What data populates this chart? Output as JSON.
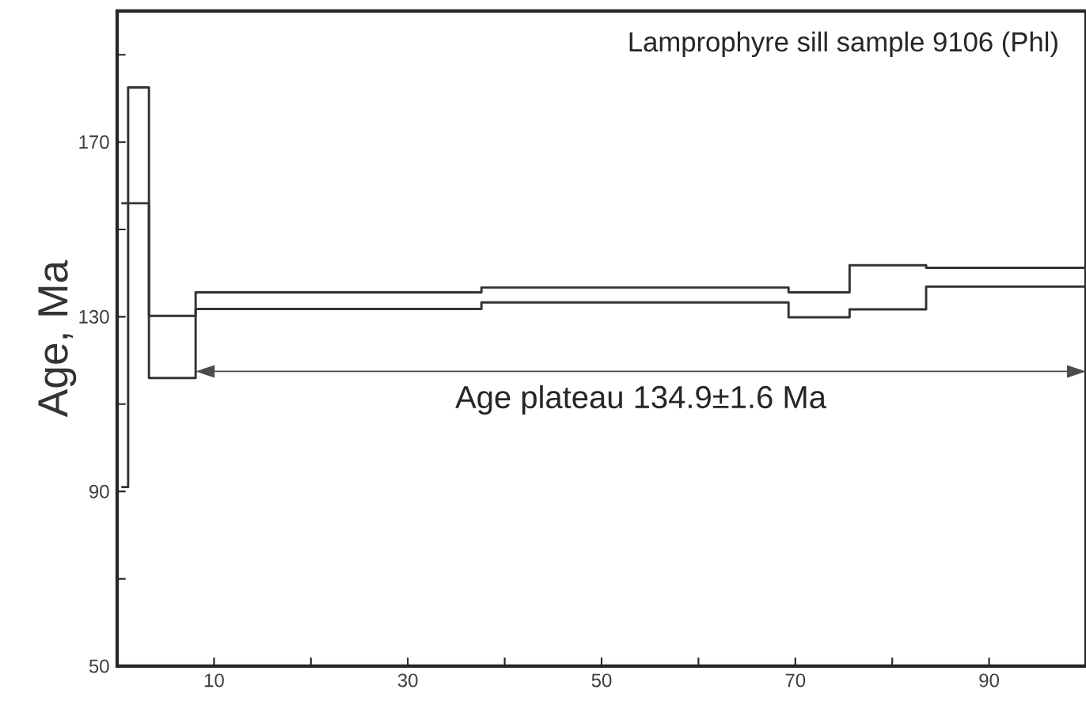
{
  "chart_data": {
    "type": "step",
    "title": "Lamprophyre sill sample 9106 (Phl)",
    "ylabel": "Age, Ma",
    "x": [
      0.43,
      1.13,
      3.28,
      8.1,
      37.6,
      69.3,
      75.6,
      83.5,
      100
    ],
    "series": [
      {
        "color": "#333333",
        "values": [
          156,
          182.5,
          130.2,
          135.6,
          136.7,
          135.6,
          141.8,
          141.2,
          141.2
        ]
      },
      {
        "color": "#333333",
        "values": [
          91,
          156,
          116,
          131.8,
          133.3,
          129.9,
          131.7,
          136.9,
          136.9
        ]
      }
    ],
    "xlim": [
      0,
      100
    ],
    "ylim": [
      50,
      200
    ],
    "xticks": [
      {
        "value": 10,
        "label": "10"
      },
      {
        "value": 20,
        "label": null
      },
      {
        "value": 30,
        "label": "30"
      },
      {
        "value": 40,
        "label": null
      },
      {
        "value": 50,
        "label": "50"
      },
      {
        "value": 60,
        "label": null
      },
      {
        "value": 70,
        "label": "70"
      },
      {
        "value": 80,
        "label": null
      },
      {
        "value": 90,
        "label": "90"
      }
    ],
    "yticks": [
      {
        "value": 50,
        "label": "50"
      },
      {
        "value": 70,
        "label": null
      },
      {
        "value": 90,
        "label": "90"
      },
      {
        "value": 110,
        "label": null
      },
      {
        "value": 130,
        "label": "130"
      },
      {
        "value": 150,
        "label": null
      },
      {
        "value": 170,
        "label": "170"
      },
      {
        "value": 190,
        "label": null
      }
    ],
    "annotations": [
      "Age plateau 134.9±1.6 Ma"
    ],
    "grid": false
  }
}
